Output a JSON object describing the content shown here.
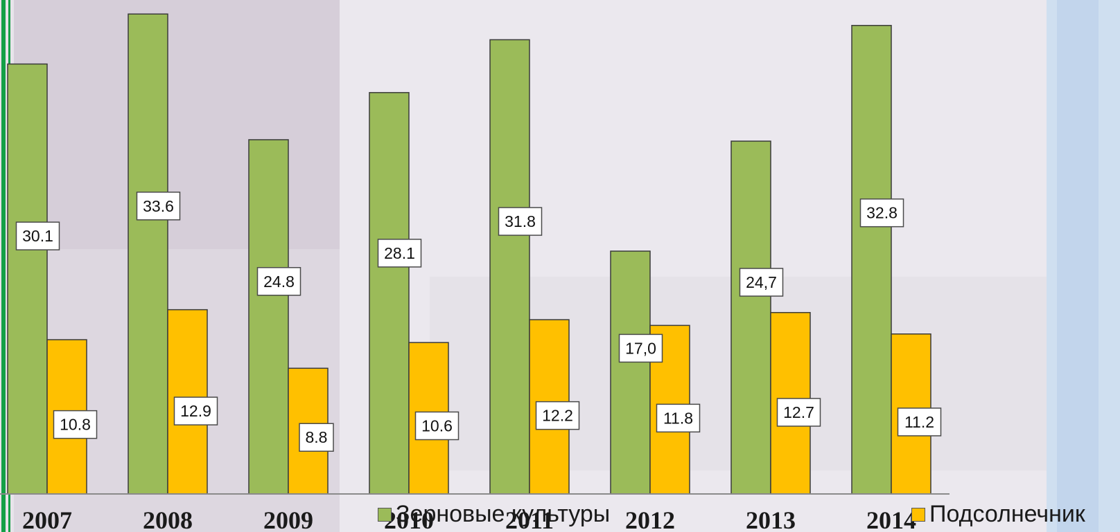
{
  "chart_data": {
    "type": "bar",
    "categories": [
      "2007",
      "2008",
      "2009",
      "2010",
      "2011",
      "2012",
      "2013",
      "2014"
    ],
    "series": [
      {
        "name": "Зерновые культуры",
        "color": "#9bbb59",
        "values": [
          30.1,
          33.6,
          24.8,
          28.1,
          31.8,
          17.0,
          24.7,
          32.8
        ],
        "labels": [
          "30.1",
          "33.6",
          "24.8",
          "28.1",
          "31.8",
          "17,0",
          "24,7",
          "32.8"
        ]
      },
      {
        "name": "Подсолнечник",
        "color": "#ffc000",
        "values": [
          10.8,
          12.9,
          8.8,
          10.6,
          12.2,
          11.8,
          12.7,
          11.2
        ],
        "labels": [
          "10.8",
          "12.9",
          "8.8",
          "10.6",
          "12.2",
          "11.8",
          "12.7",
          "11.2"
        ]
      }
    ],
    "title": "",
    "xlabel": "",
    "ylabel": "",
    "ylim": [
      0,
      34
    ],
    "grid": false,
    "legend_position": "bottom"
  }
}
